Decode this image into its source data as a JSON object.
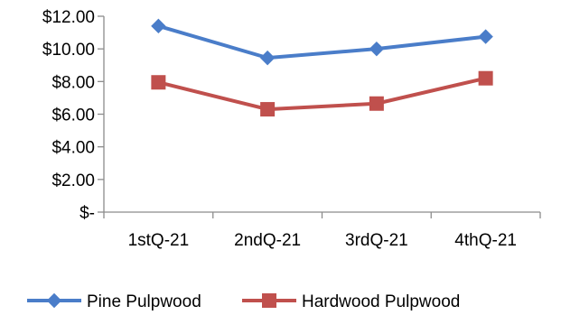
{
  "chart_data": {
    "type": "line",
    "categories": [
      "1stQ-21",
      "2ndQ-21",
      "3rdQ-21",
      "4thQ-21"
    ],
    "y_tick_labels": [
      "$-",
      "$2.00",
      "$4.00",
      "$6.00",
      "$8.00",
      "$10.00",
      "$12.00"
    ],
    "y_ticks": [
      0,
      2,
      4,
      6,
      8,
      10,
      12
    ],
    "ylim": [
      0,
      12
    ],
    "grid": false,
    "legend_position": "bottom",
    "series": [
      {
        "name": "Pine Pulpwood",
        "values": [
          11.4,
          9.45,
          10.0,
          10.75
        ],
        "color": "#4a7dc9",
        "marker": "diamond"
      },
      {
        "name": "Hardwood Pulpwood",
        "values": [
          7.95,
          6.3,
          6.65,
          8.2
        ],
        "color": "#c0504d",
        "marker": "square"
      }
    ]
  }
}
